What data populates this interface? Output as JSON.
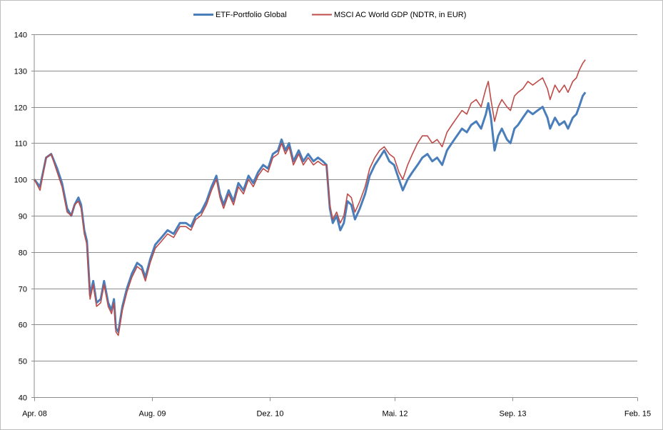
{
  "chart_data": {
    "type": "line",
    "title": "",
    "xlabel": "",
    "ylabel": "",
    "ylim": [
      40,
      140
    ],
    "yticks": [
      40,
      50,
      60,
      70,
      80,
      90,
      100,
      110,
      120,
      130,
      140
    ],
    "xlim": [
      "2008-04-01",
      "2015-02-01"
    ],
    "xtick_labels": [
      {
        "date": "2008-04-01",
        "label": "Apr. 08"
      },
      {
        "date": "2009-08-01",
        "label": "Aug. 09"
      },
      {
        "date": "2010-12-01",
        "label": "Dez. 10"
      },
      {
        "date": "2012-05-01",
        "label": "Mai. 12"
      },
      {
        "date": "2013-09-01",
        "label": "Sep. 13"
      },
      {
        "date": "2015-02-01",
        "label": "Feb. 15"
      }
    ],
    "grid": "horizontal",
    "legend_position": "top",
    "series": [
      {
        "name": "ETF-Portfolio Global",
        "color": "#4a7ebb",
        "points": [
          [
            "2008-04-01",
            100
          ],
          [
            "2008-04-25",
            98
          ],
          [
            "2008-05-20",
            106
          ],
          [
            "2008-06-10",
            107
          ],
          [
            "2008-07-05",
            103
          ],
          [
            "2008-07-25",
            99
          ],
          [
            "2008-08-15",
            92
          ],
          [
            "2008-09-01",
            90
          ],
          [
            "2008-09-15",
            93
          ],
          [
            "2008-10-01",
            95
          ],
          [
            "2008-10-12",
            93
          ],
          [
            "2008-10-25",
            86
          ],
          [
            "2008-11-05",
            83
          ],
          [
            "2008-11-18",
            68
          ],
          [
            "2008-12-01",
            72
          ],
          [
            "2008-12-15",
            66
          ],
          [
            "2009-01-01",
            67
          ],
          [
            "2009-01-15",
            72
          ],
          [
            "2009-02-01",
            66
          ],
          [
            "2009-02-15",
            64
          ],
          [
            "2009-02-25",
            67
          ],
          [
            "2009-03-05",
            59
          ],
          [
            "2009-03-15",
            58
          ],
          [
            "2009-04-01",
            65
          ],
          [
            "2009-04-20",
            70
          ],
          [
            "2009-05-10",
            74
          ],
          [
            "2009-06-01",
            77
          ],
          [
            "2009-06-20",
            76
          ],
          [
            "2009-07-05",
            73
          ],
          [
            "2009-07-25",
            78
          ],
          [
            "2009-08-15",
            82
          ],
          [
            "2009-09-10",
            84
          ],
          [
            "2009-10-05",
            86
          ],
          [
            "2009-10-30",
            85
          ],
          [
            "2009-11-25",
            88
          ],
          [
            "2009-12-20",
            88
          ],
          [
            "2010-01-10",
            87
          ],
          [
            "2010-01-30",
            90
          ],
          [
            "2010-02-20",
            91
          ],
          [
            "2010-03-15",
            94
          ],
          [
            "2010-04-05",
            98
          ],
          [
            "2010-04-25",
            101
          ],
          [
            "2010-05-10",
            96
          ],
          [
            "2010-05-25",
            93
          ],
          [
            "2010-06-15",
            97
          ],
          [
            "2010-07-05",
            94
          ],
          [
            "2010-07-25",
            99
          ],
          [
            "2010-08-15",
            97
          ],
          [
            "2010-09-05",
            101
          ],
          [
            "2010-09-25",
            99
          ],
          [
            "2010-10-15",
            102
          ],
          [
            "2010-11-05",
            104
          ],
          [
            "2010-11-25",
            103
          ],
          [
            "2010-12-15",
            107
          ],
          [
            "2011-01-05",
            108
          ],
          [
            "2011-01-20",
            111
          ],
          [
            "2011-02-05",
            108
          ],
          [
            "2011-02-20",
            110
          ],
          [
            "2011-03-10",
            105
          ],
          [
            "2011-04-01",
            108
          ],
          [
            "2011-04-20",
            105
          ],
          [
            "2011-05-10",
            107
          ],
          [
            "2011-06-01",
            105
          ],
          [
            "2011-06-20",
            106
          ],
          [
            "2011-07-10",
            105
          ],
          [
            "2011-07-25",
            104
          ],
          [
            "2011-08-08",
            92
          ],
          [
            "2011-08-20",
            88
          ],
          [
            "2011-09-05",
            90
          ],
          [
            "2011-09-20",
            86
          ],
          [
            "2011-10-05",
            88
          ],
          [
            "2011-10-20",
            94
          ],
          [
            "2011-11-05",
            93
          ],
          [
            "2011-11-20",
            89
          ],
          [
            "2011-12-10",
            92
          ],
          [
            "2012-01-01",
            96
          ],
          [
            "2012-01-20",
            101
          ],
          [
            "2012-02-10",
            104
          ],
          [
            "2012-03-01",
            106
          ],
          [
            "2012-03-20",
            108
          ],
          [
            "2012-04-10",
            105
          ],
          [
            "2012-04-30",
            104
          ],
          [
            "2012-05-20",
            100
          ],
          [
            "2012-06-05",
            97
          ],
          [
            "2012-06-25",
            100
          ],
          [
            "2012-07-15",
            102
          ],
          [
            "2012-08-05",
            104
          ],
          [
            "2012-08-25",
            106
          ],
          [
            "2012-09-15",
            107
          ],
          [
            "2012-10-05",
            105
          ],
          [
            "2012-10-25",
            106
          ],
          [
            "2012-11-15",
            104
          ],
          [
            "2012-12-05",
            108
          ],
          [
            "2012-12-25",
            110
          ],
          [
            "2013-01-15",
            112
          ],
          [
            "2013-02-05",
            114
          ],
          [
            "2013-02-25",
            113
          ],
          [
            "2013-03-15",
            115
          ],
          [
            "2013-04-05",
            116
          ],
          [
            "2013-04-25",
            114
          ],
          [
            "2013-05-15",
            118
          ],
          [
            "2013-05-25",
            121
          ],
          [
            "2013-06-05",
            117
          ],
          [
            "2013-06-20",
            108
          ],
          [
            "2013-07-05",
            112
          ],
          [
            "2013-07-20",
            114
          ],
          [
            "2013-08-10",
            111
          ],
          [
            "2013-08-25",
            110
          ],
          [
            "2013-09-10",
            114
          ],
          [
            "2013-09-25",
            115
          ],
          [
            "2013-10-15",
            117
          ],
          [
            "2013-11-05",
            119
          ],
          [
            "2013-11-25",
            118
          ],
          [
            "2013-12-15",
            119
          ],
          [
            "2014-01-05",
            120
          ],
          [
            "2014-01-25",
            117
          ],
          [
            "2014-02-05",
            114
          ],
          [
            "2014-02-25",
            117
          ],
          [
            "2014-03-15",
            115
          ],
          [
            "2014-04-05",
            116
          ],
          [
            "2014-04-20",
            114
          ],
          [
            "2014-05-10",
            117
          ],
          [
            "2014-05-25",
            118
          ],
          [
            "2014-06-05",
            120
          ],
          [
            "2014-06-20",
            123
          ],
          [
            "2014-07-01",
            124
          ]
        ]
      },
      {
        "name": "MSCI AC World GDP (NDTR, in EUR)",
        "color": "#be4b48",
        "points": [
          [
            "2008-04-01",
            100
          ],
          [
            "2008-04-25",
            97
          ],
          [
            "2008-05-20",
            106
          ],
          [
            "2008-06-10",
            107
          ],
          [
            "2008-07-05",
            102
          ],
          [
            "2008-07-25",
            98
          ],
          [
            "2008-08-15",
            91
          ],
          [
            "2008-09-01",
            90
          ],
          [
            "2008-09-15",
            93
          ],
          [
            "2008-10-01",
            94
          ],
          [
            "2008-10-12",
            92
          ],
          [
            "2008-10-25",
            85
          ],
          [
            "2008-11-05",
            82
          ],
          [
            "2008-11-18",
            67
          ],
          [
            "2008-12-01",
            71
          ],
          [
            "2008-12-15",
            65
          ],
          [
            "2009-01-01",
            66
          ],
          [
            "2009-01-15",
            71
          ],
          [
            "2009-02-01",
            65
          ],
          [
            "2009-02-15",
            63
          ],
          [
            "2009-02-25",
            66
          ],
          [
            "2009-03-05",
            58
          ],
          [
            "2009-03-15",
            57
          ],
          [
            "2009-04-01",
            64
          ],
          [
            "2009-04-20",
            69
          ],
          [
            "2009-05-10",
            73
          ],
          [
            "2009-06-01",
            76
          ],
          [
            "2009-06-20",
            75
          ],
          [
            "2009-07-05",
            72
          ],
          [
            "2009-07-25",
            77
          ],
          [
            "2009-08-15",
            81
          ],
          [
            "2009-09-10",
            83
          ],
          [
            "2009-10-05",
            85
          ],
          [
            "2009-10-30",
            84
          ],
          [
            "2009-11-25",
            87
          ],
          [
            "2009-12-20",
            87
          ],
          [
            "2010-01-10",
            86
          ],
          [
            "2010-01-30",
            89
          ],
          [
            "2010-02-20",
            90
          ],
          [
            "2010-03-15",
            93
          ],
          [
            "2010-04-05",
            97
          ],
          [
            "2010-04-25",
            100
          ],
          [
            "2010-05-10",
            95
          ],
          [
            "2010-05-25",
            92
          ],
          [
            "2010-06-15",
            96
          ],
          [
            "2010-07-05",
            93
          ],
          [
            "2010-07-25",
            98
          ],
          [
            "2010-08-15",
            96
          ],
          [
            "2010-09-05",
            100
          ],
          [
            "2010-09-25",
            98
          ],
          [
            "2010-10-15",
            101
          ],
          [
            "2010-11-05",
            103
          ],
          [
            "2010-11-25",
            102
          ],
          [
            "2010-12-15",
            106
          ],
          [
            "2011-01-05",
            107
          ],
          [
            "2011-01-20",
            110
          ],
          [
            "2011-02-05",
            107
          ],
          [
            "2011-02-20",
            109
          ],
          [
            "2011-03-10",
            104
          ],
          [
            "2011-04-01",
            107
          ],
          [
            "2011-04-20",
            104
          ],
          [
            "2011-05-10",
            106
          ],
          [
            "2011-06-01",
            104
          ],
          [
            "2011-06-20",
            105
          ],
          [
            "2011-07-10",
            104
          ],
          [
            "2011-07-25",
            104
          ],
          [
            "2011-08-08",
            93
          ],
          [
            "2011-08-20",
            89
          ],
          [
            "2011-09-05",
            91
          ],
          [
            "2011-09-20",
            88
          ],
          [
            "2011-10-05",
            90
          ],
          [
            "2011-10-20",
            96
          ],
          [
            "2011-11-05",
            95
          ],
          [
            "2011-11-20",
            91
          ],
          [
            "2011-12-10",
            94
          ],
          [
            "2012-01-01",
            98
          ],
          [
            "2012-01-20",
            103
          ],
          [
            "2012-02-10",
            106
          ],
          [
            "2012-03-01",
            108
          ],
          [
            "2012-03-20",
            109
          ],
          [
            "2012-04-10",
            107
          ],
          [
            "2012-04-30",
            106
          ],
          [
            "2012-05-20",
            102
          ],
          [
            "2012-06-05",
            100
          ],
          [
            "2012-06-25",
            104
          ],
          [
            "2012-07-15",
            107
          ],
          [
            "2012-08-05",
            110
          ],
          [
            "2012-08-25",
            112
          ],
          [
            "2012-09-15",
            112
          ],
          [
            "2012-10-05",
            110
          ],
          [
            "2012-10-25",
            111
          ],
          [
            "2012-11-15",
            109
          ],
          [
            "2012-12-05",
            113
          ],
          [
            "2012-12-25",
            115
          ],
          [
            "2013-01-15",
            117
          ],
          [
            "2013-02-05",
            119
          ],
          [
            "2013-02-25",
            118
          ],
          [
            "2013-03-15",
            121
          ],
          [
            "2013-04-05",
            122
          ],
          [
            "2013-04-25",
            120
          ],
          [
            "2013-05-15",
            125
          ],
          [
            "2013-05-25",
            127
          ],
          [
            "2013-06-05",
            122
          ],
          [
            "2013-06-20",
            116
          ],
          [
            "2013-07-05",
            120
          ],
          [
            "2013-07-20",
            122
          ],
          [
            "2013-08-10",
            120
          ],
          [
            "2013-08-25",
            119
          ],
          [
            "2013-09-10",
            123
          ],
          [
            "2013-09-25",
            124
          ],
          [
            "2013-10-15",
            125
          ],
          [
            "2013-11-05",
            127
          ],
          [
            "2013-11-25",
            126
          ],
          [
            "2013-12-15",
            127
          ],
          [
            "2014-01-05",
            128
          ],
          [
            "2014-01-25",
            125
          ],
          [
            "2014-02-05",
            122
          ],
          [
            "2014-02-25",
            126
          ],
          [
            "2014-03-15",
            124
          ],
          [
            "2014-04-05",
            126
          ],
          [
            "2014-04-20",
            124
          ],
          [
            "2014-05-10",
            127
          ],
          [
            "2014-05-25",
            128
          ],
          [
            "2014-06-05",
            130
          ],
          [
            "2014-06-20",
            132
          ],
          [
            "2014-07-01",
            133
          ]
        ]
      }
    ]
  }
}
